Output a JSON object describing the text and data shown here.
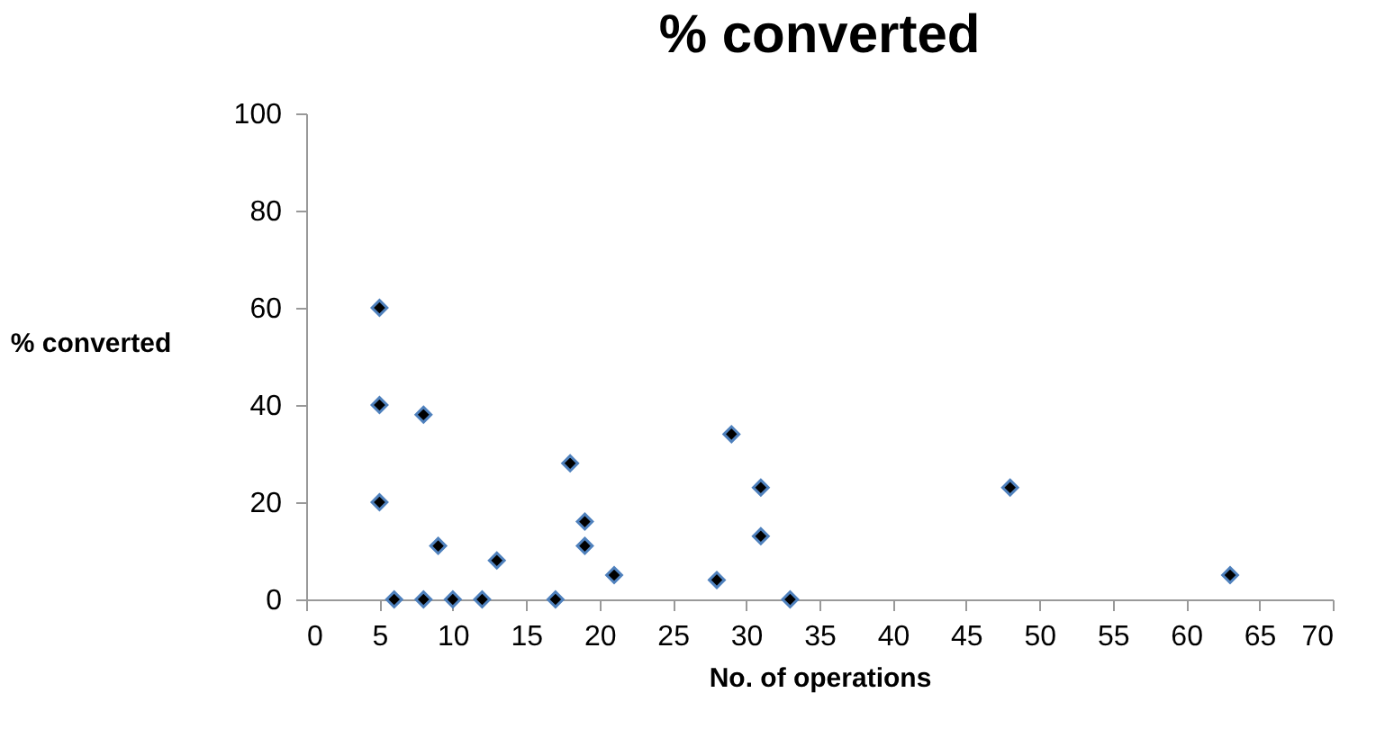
{
  "chart_data": {
    "type": "scatter",
    "title": "% converted",
    "xlabel": "No. of operations",
    "ylabel": "% converted",
    "x": [
      5,
      5,
      5,
      6,
      8,
      8,
      9,
      10,
      12,
      13,
      17,
      18,
      19,
      19,
      21,
      28,
      29,
      31,
      31,
      33,
      48,
      63
    ],
    "series": [
      {
        "color": "#000000",
        "values": [
          60,
          40,
          20,
          0,
          38,
          0,
          11,
          0,
          0,
          8,
          0,
          28,
          16,
          11,
          5,
          4,
          34,
          23,
          13,
          0,
          23,
          5
        ]
      }
    ],
    "marker": "diamond",
    "xlim": [
      0,
      70
    ],
    "xticks": [
      0,
      5,
      10,
      15,
      20,
      25,
      30,
      35,
      40,
      45,
      50,
      55,
      60,
      65,
      70
    ],
    "ylim": [
      0,
      100
    ],
    "yticks": [
      0,
      20,
      40,
      60,
      80,
      100
    ],
    "grid": false,
    "legend": false
  }
}
